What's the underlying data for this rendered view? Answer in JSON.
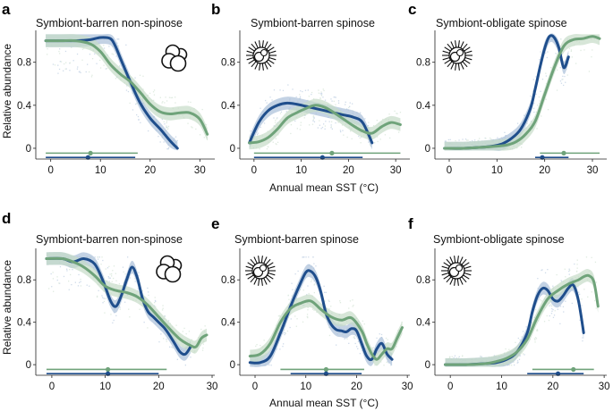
{
  "colors": {
    "blue": "#1f4e8c",
    "green": "#6fa37a",
    "blue_band": "#a9bfd9",
    "green_band": "#c6dcc8"
  },
  "y_axis_label": "Relative abundance",
  "x_axis_label": "Annual mean SST (°C)",
  "chart_data": [
    {
      "type": "line",
      "letter": "a",
      "title": "Symbiont-barren non-spinose",
      "icon": "non-spinose-foraminifera-icon",
      "xlim": [
        -3,
        33
      ],
      "ylim": [
        -0.1,
        1.08
      ],
      "xticks": [
        "0",
        "10",
        "20",
        "30"
      ],
      "yticks": [
        "0",
        "0.4",
        "0.8"
      ],
      "series": [
        {
          "name": "blue",
          "x": [
            -1,
            2,
            5,
            8,
            10,
            12,
            13,
            14,
            16,
            18,
            20,
            22,
            24,
            25.5
          ],
          "values": [
            1.0,
            1.0,
            1.0,
            1.01,
            1.03,
            1.02,
            0.95,
            0.84,
            0.62,
            0.42,
            0.28,
            0.18,
            0.07,
            0.0
          ]
        },
        {
          "name": "green",
          "x": [
            -1,
            2,
            5,
            8,
            10,
            12,
            14,
            16,
            18,
            20,
            22,
            24,
            26,
            28,
            30,
            31.5
          ],
          "values": [
            1.0,
            1.0,
            1.0,
            0.97,
            0.9,
            0.78,
            0.69,
            0.62,
            0.52,
            0.41,
            0.34,
            0.32,
            0.33,
            0.33,
            0.27,
            0.13
          ]
        }
      ],
      "ranges": [
        {
          "name": "green",
          "lo": -1,
          "hi": 17.5,
          "mean": 8
        },
        {
          "name": "blue",
          "lo": -1,
          "hi": 17,
          "mean": 7.5
        }
      ]
    },
    {
      "type": "line",
      "letter": "b",
      "title": "Symbiont-barren spinose",
      "icon": "spinose-foraminifera-icon",
      "xlim": [
        -3,
        33
      ],
      "ylim": [
        -0.1,
        1.08
      ],
      "xticks": [
        "0",
        "10",
        "20",
        "30"
      ],
      "yticks": [
        "0",
        "0.4",
        "0.8"
      ],
      "series": [
        {
          "name": "blue",
          "x": [
            -1,
            1,
            3,
            5,
            7,
            9,
            11,
            13,
            15,
            17,
            19,
            21,
            23,
            25
          ],
          "values": [
            0.05,
            0.24,
            0.35,
            0.4,
            0.42,
            0.41,
            0.39,
            0.37,
            0.35,
            0.33,
            0.31,
            0.29,
            0.24,
            0.05
          ]
        },
        {
          "name": "green",
          "x": [
            -1,
            1,
            3,
            5,
            7,
            9,
            11,
            13,
            15,
            17,
            19,
            21,
            23,
            25,
            27,
            29,
            31
          ],
          "values": [
            0.05,
            0.06,
            0.1,
            0.18,
            0.28,
            0.33,
            0.37,
            0.4,
            0.38,
            0.33,
            0.27,
            0.21,
            0.16,
            0.14,
            0.2,
            0.24,
            0.22
          ]
        }
      ],
      "ranges": [
        {
          "name": "green",
          "lo": 0,
          "hi": 31,
          "mean": 16.5
        },
        {
          "name": "blue",
          "lo": 0,
          "hi": 23,
          "mean": 14.5
        }
      ]
    },
    {
      "type": "line",
      "letter": "c",
      "title": "Symbiont-obligate spinose",
      "icon": "spinose-foraminifera-icon",
      "xlim": [
        -3,
        33
      ],
      "ylim": [
        -0.1,
        1.08
      ],
      "xticks": [
        "0",
        "10",
        "20",
        "30"
      ],
      "yticks": [
        "0",
        "0.4",
        "0.8"
      ],
      "series": [
        {
          "name": "blue",
          "x": [
            -1,
            3,
            7,
            9,
            11,
            13,
            15,
            17,
            18,
            19,
            20,
            21,
            22,
            23,
            24,
            25
          ],
          "values": [
            0.0,
            0.0,
            0.01,
            0.02,
            0.04,
            0.09,
            0.18,
            0.37,
            0.55,
            0.75,
            0.93,
            1.04,
            1.03,
            0.93,
            0.75,
            0.85
          ]
        },
        {
          "name": "green",
          "x": [
            -1,
            3,
            7,
            10,
            12,
            14,
            16,
            18,
            20,
            22,
            24,
            26,
            28,
            30,
            31.5
          ],
          "values": [
            0.0,
            0.0,
            0.01,
            0.02,
            0.03,
            0.06,
            0.13,
            0.25,
            0.5,
            0.75,
            0.95,
            1.01,
            1.02,
            1.04,
            1.02
          ]
        }
      ],
      "ranges": [
        {
          "name": "green",
          "lo": 19,
          "hi": 31.5,
          "mean": 24
        },
        {
          "name": "blue",
          "lo": 18,
          "hi": 25,
          "mean": 19.5
        }
      ]
    },
    {
      "type": "line",
      "letter": "d",
      "title": "Symbiont-barren non-spinose",
      "icon": "non-spinose-foraminifera-icon",
      "xlim": [
        -3,
        30.5
      ],
      "ylim": [
        -0.1,
        1.08
      ],
      "xticks": [
        "0",
        "10",
        "20",
        "30"
      ],
      "yticks": [
        "0",
        "0.4",
        "0.8"
      ],
      "series": [
        {
          "name": "blue",
          "x": [
            -1,
            2,
            4,
            6,
            8,
            9.5,
            11,
            12,
            13,
            14,
            15,
            16,
            17,
            18,
            19,
            20,
            21,
            22,
            23,
            24,
            25,
            26
          ],
          "values": [
            1.0,
            1.0,
            0.97,
            1.0,
            0.95,
            0.8,
            0.6,
            0.55,
            0.65,
            0.8,
            0.92,
            0.82,
            0.62,
            0.5,
            0.45,
            0.4,
            0.35,
            0.28,
            0.2,
            0.12,
            0.1,
            0.17
          ]
        },
        {
          "name": "green",
          "x": [
            -1,
            2,
            4,
            6,
            8,
            10,
            12,
            14,
            16,
            18,
            20,
            22,
            24,
            26,
            27,
            28,
            29
          ],
          "values": [
            1.0,
            1.0,
            0.97,
            0.92,
            0.84,
            0.74,
            0.7,
            0.68,
            0.64,
            0.56,
            0.45,
            0.34,
            0.24,
            0.18,
            0.17,
            0.25,
            0.28
          ]
        }
      ],
      "ranges": [
        {
          "name": "green",
          "lo": -1,
          "hi": 21.5,
          "mean": 10.5
        },
        {
          "name": "blue",
          "lo": -1,
          "hi": 20,
          "mean": 10.5
        }
      ]
    },
    {
      "type": "line",
      "letter": "e",
      "title": "Symbiont-barren spinose",
      "icon": "spinose-foraminifera-icon",
      "xlim": [
        -3,
        30.5
      ],
      "ylim": [
        -0.1,
        1.08
      ],
      "xticks": [
        "0",
        "10",
        "20",
        "30"
      ],
      "yticks": [
        "0",
        "0.4",
        "0.8"
      ],
      "series": [
        {
          "name": "blue",
          "x": [
            -1,
            1,
            3,
            5,
            7,
            8.5,
            10,
            11,
            12,
            13,
            14,
            15,
            16,
            17,
            18,
            19,
            20,
            21,
            22,
            23,
            24,
            25,
            26,
            27
          ],
          "values": [
            0.02,
            0.02,
            0.08,
            0.3,
            0.55,
            0.72,
            0.87,
            0.88,
            0.82,
            0.68,
            0.48,
            0.38,
            0.33,
            0.32,
            0.31,
            0.34,
            0.32,
            0.2,
            0.08,
            0.05,
            0.15,
            0.2,
            0.1,
            0.05
          ]
        },
        {
          "name": "green",
          "x": [
            -1,
            1,
            3,
            5,
            7,
            9,
            11,
            13,
            15,
            17,
            19,
            21,
            22,
            23,
            24,
            25,
            26,
            27,
            28,
            29
          ],
          "values": [
            0.08,
            0.1,
            0.2,
            0.4,
            0.53,
            0.58,
            0.6,
            0.52,
            0.45,
            0.42,
            0.44,
            0.32,
            0.2,
            0.1,
            0.05,
            0.1,
            0.15,
            0.15,
            0.25,
            0.35
          ]
        }
      ],
      "ranges": [
        {
          "name": "green",
          "lo": 5,
          "hi": 21.5,
          "mean": 14
        },
        {
          "name": "blue",
          "lo": 7,
          "hi": 21,
          "mean": 14
        }
      ]
    },
    {
      "type": "line",
      "letter": "f",
      "title": "Symbiont-obligate spinose",
      "icon": "spinose-foraminifera-icon",
      "xlim": [
        -3,
        30.5
      ],
      "ylim": [
        -0.1,
        1.08
      ],
      "xticks": [
        "0",
        "10",
        "20",
        "30"
      ],
      "yticks": [
        "0",
        "0.4",
        "0.8"
      ],
      "series": [
        {
          "name": "blue",
          "x": [
            -1,
            3,
            7,
            9,
            11,
            13,
            15,
            16,
            17,
            18,
            19,
            20,
            21,
            22,
            23,
            24,
            25,
            26
          ],
          "values": [
            0.0,
            0.0,
            0.01,
            0.02,
            0.05,
            0.12,
            0.3,
            0.5,
            0.65,
            0.72,
            0.7,
            0.62,
            0.6,
            0.65,
            0.72,
            0.75,
            0.6,
            0.3
          ]
        },
        {
          "name": "green",
          "x": [
            -1,
            3,
            7,
            9,
            11,
            13,
            15,
            17,
            19,
            21,
            23,
            25,
            26,
            27,
            28,
            28.8
          ],
          "values": [
            0.0,
            0.0,
            0.01,
            0.03,
            0.06,
            0.12,
            0.24,
            0.45,
            0.62,
            0.7,
            0.76,
            0.8,
            0.83,
            0.84,
            0.78,
            0.55
          ]
        }
      ],
      "ranges": [
        {
          "name": "green",
          "lo": 16,
          "hi": 28,
          "mean": 24
        },
        {
          "name": "blue",
          "lo": 15,
          "hi": 26,
          "mean": 21
        }
      ]
    }
  ]
}
